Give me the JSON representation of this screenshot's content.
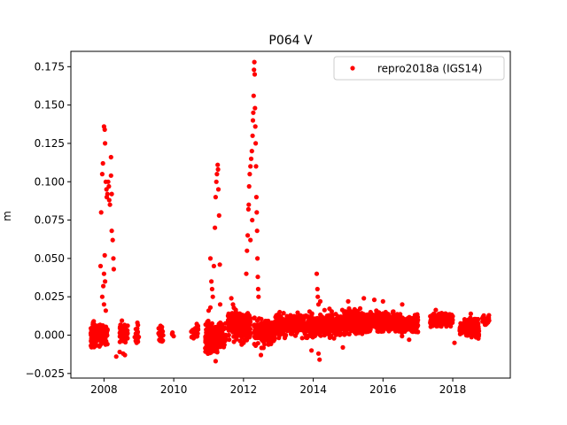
{
  "chart_data": {
    "type": "scatter",
    "title": "P064 V",
    "xlabel": "",
    "ylabel": "m",
    "xlim": [
      2007.05,
      2019.65
    ],
    "ylim": [
      -0.028,
      0.185
    ],
    "xticks": [
      2008,
      2010,
      2012,
      2014,
      2016,
      2018
    ],
    "yticks": [
      -0.025,
      0.0,
      0.025,
      0.05,
      0.075,
      0.1,
      0.125,
      0.15,
      0.175
    ],
    "ytick_labels": [
      "−0.025",
      "0.000",
      "0.025",
      "0.050",
      "0.075",
      "0.100",
      "0.125",
      "0.150",
      "0.175"
    ],
    "grid": false,
    "legend_position": "top-right",
    "colors": {
      "series": "#ff0000",
      "axes": "#000000",
      "background": "#ffffff"
    },
    "series": [
      {
        "name": "repro2018a (IGS14)",
        "marker": "circle",
        "clusters": [
          {
            "x_range": [
              2007.62,
              2007.85
            ],
            "y_range": [
              -0.011,
              0.011
            ],
            "count": 170
          },
          {
            "x_range": [
              2007.85,
              2008.1
            ],
            "y_range": [
              -0.01,
              0.012
            ],
            "count": 110
          },
          {
            "x_range": [
              2008.45,
              2008.68
            ],
            "y_range": [
              -0.01,
              0.012
            ],
            "count": 70
          },
          {
            "x_range": [
              2008.88,
              2009.0
            ],
            "y_range": [
              -0.009,
              0.01
            ],
            "count": 20
          },
          {
            "x_range": [
              2009.55,
              2009.7
            ],
            "y_range": [
              -0.008,
              0.012
            ],
            "count": 22
          },
          {
            "x_range": [
              2009.95,
              2010.02
            ],
            "y_range": [
              -0.003,
              0.003
            ],
            "count": 4
          },
          {
            "x_range": [
              2010.5,
              2010.7
            ],
            "y_range": [
              -0.006,
              0.01
            ],
            "count": 35
          },
          {
            "x_range": [
              2010.9,
              2011.25
            ],
            "y_range": [
              -0.016,
              0.012
            ],
            "count": 150
          },
          {
            "x_range": [
              2011.25,
              2011.5
            ],
            "y_range": [
              -0.012,
              0.012
            ],
            "count": 90
          },
          {
            "x_range": [
              2011.55,
              2011.75
            ],
            "y_range": [
              -0.008,
              0.022
            ],
            "count": 60
          },
          {
            "x_range": [
              2011.75,
              2012.2
            ],
            "y_range": [
              -0.01,
              0.022
            ],
            "count": 200
          },
          {
            "x_range": [
              2012.3,
              2012.9
            ],
            "y_range": [
              -0.011,
              0.016
            ],
            "count": 200
          },
          {
            "x_range": [
              2012.9,
              2013.8
            ],
            "y_range": [
              -0.005,
              0.018
            ],
            "count": 280
          },
          {
            "x_range": [
              2013.8,
              2014.7
            ],
            "y_range": [
              -0.006,
              0.018
            ],
            "count": 320
          },
          {
            "x_range": [
              2014.7,
              2015.6
            ],
            "y_range": [
              -0.004,
              0.02
            ],
            "count": 320
          },
          {
            "x_range": [
              2015.6,
              2016.5
            ],
            "y_range": [
              -0.002,
              0.02
            ],
            "count": 330
          },
          {
            "x_range": [
              2016.5,
              2017.0
            ],
            "y_range": [
              -0.002,
              0.016
            ],
            "count": 180
          },
          {
            "x_range": [
              2017.35,
              2018.0
            ],
            "y_range": [
              0.002,
              0.018
            ],
            "count": 180
          },
          {
            "x_range": [
              2018.2,
              2018.75
            ],
            "y_range": [
              -0.006,
              0.017
            ],
            "count": 120
          },
          {
            "x_range": [
              2018.85,
              2019.05
            ],
            "y_range": [
              0.005,
              0.016
            ],
            "count": 25
          }
        ],
        "points": [
          [
            2007.9,
            0.045
          ],
          [
            2007.92,
            0.08
          ],
          [
            2007.95,
            0.105
          ],
          [
            2007.97,
            0.112
          ],
          [
            2008.0,
            0.136
          ],
          [
            2008.02,
            0.134
          ],
          [
            2008.03,
            0.125
          ],
          [
            2008.05,
            0.1
          ],
          [
            2008.07,
            0.095
          ],
          [
            2008.08,
            0.09
          ],
          [
            2008.1,
            0.092
          ],
          [
            2008.12,
            0.1
          ],
          [
            2008.14,
            0.097
          ],
          [
            2008.15,
            0.088
          ],
          [
            2008.17,
            0.085
          ],
          [
            2008.2,
            0.104
          ],
          [
            2008.2,
            0.116
          ],
          [
            2008.22,
            0.092
          ],
          [
            2008.22,
            0.068
          ],
          [
            2008.25,
            0.062
          ],
          [
            2008.27,
            0.05
          ],
          [
            2008.28,
            0.043
          ],
          [
            2007.95,
            0.025
          ],
          [
            2007.98,
            0.032
          ],
          [
            2008.0,
            0.04
          ],
          [
            2008.02,
            0.052
          ],
          [
            2008.05,
            0.016
          ],
          [
            2008.0,
            0.02
          ],
          [
            2008.03,
            0.035
          ],
          [
            2011.05,
            0.05
          ],
          [
            2011.08,
            0.035
          ],
          [
            2011.1,
            0.03
          ],
          [
            2011.12,
            0.025
          ],
          [
            2011.15,
            0.045
          ],
          [
            2011.18,
            0.07
          ],
          [
            2011.2,
            0.09
          ],
          [
            2011.22,
            0.1
          ],
          [
            2011.24,
            0.105
          ],
          [
            2011.26,
            0.111
          ],
          [
            2011.27,
            0.108
          ],
          [
            2011.28,
            0.095
          ],
          [
            2011.3,
            0.078
          ],
          [
            2011.32,
            0.046
          ],
          [
            2011.33,
            0.02
          ],
          [
            2011.65,
            0.024
          ],
          [
            2011.7,
            0.02
          ],
          [
            2011.0,
            0.016
          ],
          [
            2011.05,
            0.018
          ],
          [
            2012.08,
            0.04
          ],
          [
            2012.1,
            0.055
          ],
          [
            2012.12,
            0.065
          ],
          [
            2012.14,
            0.082
          ],
          [
            2012.16,
            0.097
          ],
          [
            2012.18,
            0.105
          ],
          [
            2012.2,
            0.11
          ],
          [
            2012.22,
            0.115
          ],
          [
            2012.24,
            0.12
          ],
          [
            2012.26,
            0.13
          ],
          [
            2012.27,
            0.14
          ],
          [
            2012.28,
            0.145
          ],
          [
            2012.29,
            0.156
          ],
          [
            2012.3,
            0.173
          ],
          [
            2012.31,
            0.178
          ],
          [
            2012.32,
            0.17
          ],
          [
            2012.33,
            0.148
          ],
          [
            2012.34,
            0.136
          ],
          [
            2012.35,
            0.125
          ],
          [
            2012.36,
            0.11
          ],
          [
            2012.37,
            0.09
          ],
          [
            2012.38,
            0.08
          ],
          [
            2012.39,
            0.068
          ],
          [
            2012.4,
            0.05
          ],
          [
            2012.41,
            0.038
          ],
          [
            2012.42,
            0.03
          ],
          [
            2012.43,
            0.025
          ],
          [
            2012.2,
            0.062
          ],
          [
            2012.25,
            0.075
          ],
          [
            2012.15,
            0.085
          ],
          [
            2014.1,
            0.04
          ],
          [
            2014.12,
            0.03
          ],
          [
            2014.13,
            0.025
          ],
          [
            2014.15,
            -0.012
          ],
          [
            2014.18,
            -0.016
          ],
          [
            2014.15,
            0.02
          ],
          [
            2014.2,
            0.022
          ],
          [
            2013.95,
            -0.01
          ],
          [
            2015.45,
            0.024
          ],
          [
            2015.0,
            0.022
          ],
          [
            2016.0,
            0.022
          ],
          [
            2016.55,
            0.02
          ],
          [
            2015.75,
            0.023
          ],
          [
            2014.85,
            -0.008
          ],
          [
            2018.05,
            -0.005
          ],
          [
            2008.55,
            -0.012
          ],
          [
            2008.6,
            -0.013
          ],
          [
            2011.2,
            -0.017
          ],
          [
            2008.35,
            -0.014
          ],
          [
            2008.45,
            -0.011
          ],
          [
            2016.75,
            -0.003
          ],
          [
            2017.0,
            0.002
          ],
          [
            2012.5,
            -0.013
          ]
        ]
      }
    ]
  }
}
